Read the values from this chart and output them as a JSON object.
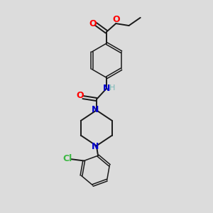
{
  "background_color": "#dcdcdc",
  "bond_color": "#1a1a1a",
  "oxygen_color": "#ff0000",
  "nitrogen_color": "#0000cc",
  "nitrogen_h_color": "#7ab8b8",
  "chlorine_color": "#3cb843",
  "figsize": [
    3.0,
    3.0
  ],
  "dpi": 100,
  "xlim": [
    0,
    10
  ],
  "ylim": [
    0,
    10
  ]
}
